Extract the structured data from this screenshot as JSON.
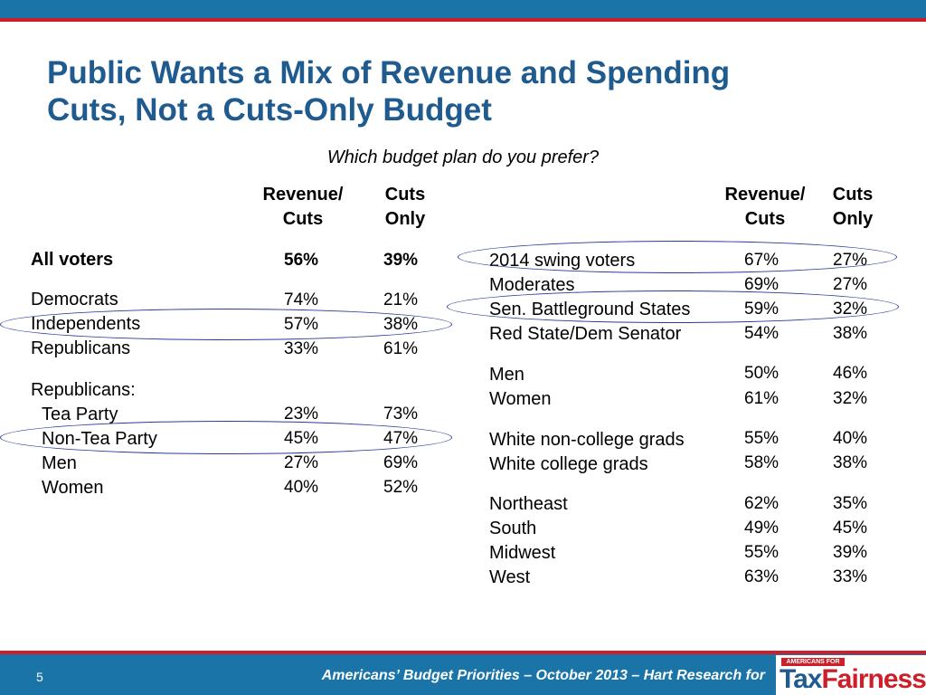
{
  "title_lines": [
    "Public Wants a Mix of Revenue and Spending",
    "Cuts, Not a Cuts-Only Budget"
  ],
  "subtitle": "Which budget plan do you prefer?",
  "headers": {
    "revenue_line1": "Revenue/",
    "revenue_line2": "Cuts",
    "cuts_line1": "Cuts",
    "cuts_line2": "Only"
  },
  "left_rows": [
    {
      "label": "All voters",
      "rev": "56%",
      "cuts": "39%"
    },
    {
      "label": "Democrats",
      "rev": "74%",
      "cuts": "21%"
    },
    {
      "label": "Independents",
      "rev": "57%",
      "cuts": "38%"
    },
    {
      "label": "Republicans",
      "rev": "33%",
      "cuts": "61%"
    },
    {
      "label": "Republicans:",
      "rev": "",
      "cuts": ""
    },
    {
      "label": "Tea Party",
      "rev": "23%",
      "cuts": "73%"
    },
    {
      "label": "Non-Tea Party",
      "rev": "45%",
      "cuts": "47%"
    },
    {
      "label": "Men",
      "rev": "27%",
      "cuts": "69%"
    },
    {
      "label": "Women",
      "rev": "40%",
      "cuts": "52%"
    }
  ],
  "right_rows": [
    {
      "label": "2014 swing voters",
      "rev": "67%",
      "cuts": "27%"
    },
    {
      "label": "Moderates",
      "rev": "69%",
      "cuts": "27%"
    },
    {
      "label": "Sen. Battleground States",
      "rev": "59%",
      "cuts": "32%"
    },
    {
      "label": "Red State/Dem Senator",
      "rev": "54%",
      "cuts": "38%"
    },
    {
      "label": "Men",
      "rev": "50%",
      "cuts": "46%"
    },
    {
      "label": "Women",
      "rev": "61%",
      "cuts": "32%"
    },
    {
      "label": "White non-college grads",
      "rev": "55%",
      "cuts": "40%"
    },
    {
      "label": "White college grads",
      "rev": "58%",
      "cuts": "38%"
    },
    {
      "label": "Northeast",
      "rev": "62%",
      "cuts": "35%"
    },
    {
      "label": "South",
      "rev": "49%",
      "cuts": "45%"
    },
    {
      "label": "Midwest",
      "rev": "55%",
      "cuts": "39%"
    },
    {
      "label": "West",
      "rev": "63%",
      "cuts": "33%"
    }
  ],
  "footer": {
    "page_number": "5",
    "text": "Americans’ Budget Priorities  – October 2013 – Hart Research for"
  },
  "logo": {
    "top_text": "AMERICANS FOR",
    "tax": "Tax",
    "fairness": "Fairness"
  },
  "colors": {
    "brand_blue": "#1b74a8",
    "title_blue": "#1f5b8e",
    "accent_red": "#cc1f2a",
    "ellipse_blue": "#2a3c9a"
  }
}
